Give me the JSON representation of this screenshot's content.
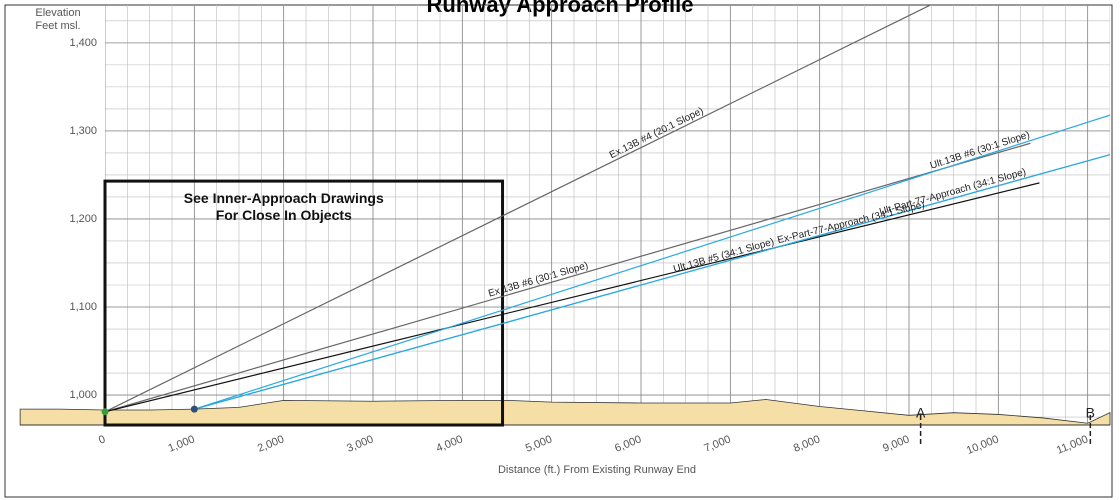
{
  "chart_data": {
    "type": "line",
    "title": "Runway Approach Profile",
    "y_label_lines": [
      "Elevation",
      "Feet msl."
    ],
    "x_label": "Distance (ft.) From Existing Runway End",
    "xlim": [
      0,
      11250
    ],
    "ylim": [
      966,
      1443
    ],
    "xticks": [
      {
        "value": 0,
        "label": "0"
      },
      {
        "value": 1000,
        "label": "1,000"
      },
      {
        "value": 2000,
        "label": "2,000"
      },
      {
        "value": 3000,
        "label": "3,000"
      },
      {
        "value": 4000,
        "label": "4,000"
      },
      {
        "value": 5000,
        "label": "5,000"
      },
      {
        "value": 6000,
        "label": "6,000"
      },
      {
        "value": 7000,
        "label": "7,000"
      },
      {
        "value": 8000,
        "label": "8,000"
      },
      {
        "value": 9000,
        "label": "9,000"
      },
      {
        "value": 10000,
        "label": "10,000"
      },
      {
        "value": 11000,
        "label": "11,000"
      }
    ],
    "yticks": [
      {
        "value": 1000,
        "label": "1,000"
      },
      {
        "value": 1100,
        "label": "1,100"
      },
      {
        "value": 1200,
        "label": "1,200"
      },
      {
        "value": 1300,
        "label": "1,300"
      },
      {
        "value": 1400,
        "label": "1,400"
      }
    ],
    "grid": true,
    "xminor": 250,
    "yminor": 25,
    "series": [
      {
        "name": "Ex.13B #4 (20:1 Slope)",
        "color": "#666666",
        "x": [
          0,
          9400
        ],
        "values": [
          981,
          1451
        ]
      },
      {
        "name": "Ex.13B #6 (30:1 Slope)",
        "color": "#666666",
        "x": [
          0,
          10360
        ],
        "values": [
          981,
          1286
        ]
      },
      {
        "name": "Ex-Part-77-Approach (34:1 Slope)",
        "color": "#111111",
        "x": [
          0,
          10460
        ],
        "values": [
          981,
          1241
        ]
      },
      {
        "name": "Ult.13B #6 (30:1 Slope)",
        "color": "#29a9e0",
        "x": [
          1000,
          11250
        ],
        "values": [
          984,
          1318
        ]
      },
      {
        "name": "Ult-Part-77-Approach (34:1 Slope)",
        "color": "#29a9e0",
        "x": [
          1000,
          11250
        ],
        "values": [
          984,
          1273
        ]
      },
      {
        "name": "Ult.13B #5 (34:1 Slope)",
        "color": "#29a9e0",
        "x": [
          1000,
          11250
        ],
        "values": [
          984,
          1273
        ]
      }
    ],
    "terrain": {
      "color": "#f6dfa6",
      "x": [
        -950,
        -500,
        0,
        500,
        1000,
        1500,
        2000,
        3000,
        4000,
        4500,
        5000,
        6000,
        7000,
        7400,
        8000,
        8500,
        9000,
        9500,
        10000,
        10500,
        11000,
        11250
      ],
      "values": [
        984,
        984,
        983,
        983,
        984,
        986,
        994,
        993,
        994,
        994,
        992,
        991,
        991,
        995,
        987,
        982,
        977,
        980,
        978,
        974,
        968,
        980
      ]
    },
    "points": [
      {
        "x": 0,
        "y": 981,
        "color": "#3a9b3a"
      },
      {
        "x": 1000,
        "y": 984,
        "color": "#2f4f7f"
      }
    ],
    "box": {
      "x": [
        0,
        4450
      ],
      "y": [
        966,
        1243
      ],
      "lines": [
        "See Inner-Approach Drawings",
        "For Close In Objects"
      ]
    },
    "markers": [
      {
        "x": 9130,
        "label": "A"
      },
      {
        "x": 11030,
        "label": "B"
      }
    ]
  }
}
